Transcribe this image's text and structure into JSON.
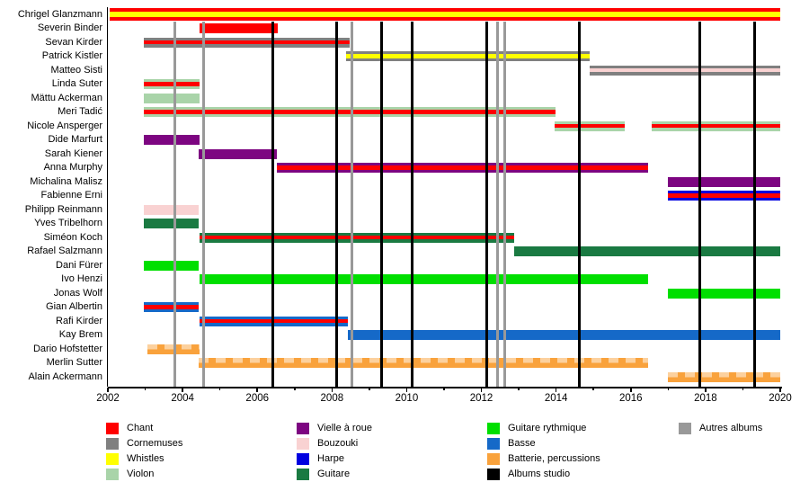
{
  "chart_data": {
    "type": "timeline",
    "axis": {
      "min": 2002,
      "max": 2020,
      "major_tick_labels": [
        "2002",
        "2004",
        "2006",
        "2008",
        "2010",
        "2012",
        "2014",
        "2016",
        "2018",
        "2020"
      ]
    },
    "colors": {
      "chant": "#FF0000",
      "cornemuses": "#808080",
      "whistles": "#FFFF00",
      "violon": "#A9D4A9",
      "vielle": "#7D0581",
      "bouzouki": "#F9D2D2",
      "harpe": "#0000E0",
      "guitare": "#1A7A42",
      "guitare_rythmique": "#00DF00",
      "basse": "#1569C8",
      "batterie": "#F9A23C",
      "albums_studio": "#000000",
      "autres_albums": "#999999"
    },
    "legend": {
      "columns": [
        [
          {
            "label": "Chant",
            "color": "chant"
          },
          {
            "label": "Cornemuses",
            "color": "cornemuses"
          },
          {
            "label": "Whistles",
            "color": "whistles"
          },
          {
            "label": "Violon",
            "color": "violon"
          }
        ],
        [
          {
            "label": "Vielle à roue",
            "color": "vielle"
          },
          {
            "label": "Bouzouki",
            "color": "bouzouki"
          },
          {
            "label": "Harpe",
            "color": "harpe"
          },
          {
            "label": "Guitare",
            "color": "guitare"
          }
        ],
        [
          {
            "label": "Guitare rythmique",
            "color": "guitare_rythmique"
          },
          {
            "label": "Basse",
            "color": "basse"
          },
          {
            "label": "Batterie, percussions",
            "color": "batterie"
          },
          {
            "label": "Albums studio",
            "color": "albums_studio"
          }
        ],
        [
          {
            "label": "Autres albums",
            "color": "autres_albums"
          }
        ]
      ]
    },
    "albums": {
      "studio": [
        2006.42,
        2008.12,
        2009.32,
        2010.15,
        2012.15,
        2014.63,
        2017.85,
        2019.32
      ],
      "autres": [
        2003.8,
        2004.57,
        2008.53,
        2012.42,
        2012.62
      ]
    },
    "members": [
      {
        "name": "Chrigel Glanzmann",
        "segments": [
          {
            "start": 2002.05,
            "end": 2020,
            "stripes": [
              "chant",
              "whistles",
              "chant"
            ],
            "tall": true
          }
        ]
      },
      {
        "name": "Severin Binder",
        "segments": [
          {
            "start": 2004.45,
            "end": 2006.55,
            "stripes": [
              "chant"
            ]
          }
        ]
      },
      {
        "name": "Sevan Kirder",
        "segments": [
          {
            "start": 2002.97,
            "end": 2008.47,
            "stripes": [
              "cornemuses",
              "chant",
              "cornemuses"
            ]
          }
        ]
      },
      {
        "name": "Patrick Kistler",
        "segments": [
          {
            "start": 2008.38,
            "end": 2014.9,
            "stripes": [
              "cornemuses",
              "whistles",
              "cornemuses"
            ]
          }
        ]
      },
      {
        "name": "Matteo Sisti",
        "segments": [
          {
            "start": 2014.9,
            "end": 2020,
            "stripes": [
              "cornemuses",
              "bouzouki",
              "cornemuses"
            ]
          }
        ]
      },
      {
        "name": "Linda Suter",
        "segments": [
          {
            "start": 2002.97,
            "end": 2004.45,
            "stripes": [
              "violon",
              "chant",
              "violon"
            ]
          }
        ]
      },
      {
        "name": "Mättu Ackerman",
        "segments": [
          {
            "start": 2002.97,
            "end": 2004.45,
            "stripes": [
              "violon"
            ]
          }
        ]
      },
      {
        "name": "Meri Tadić",
        "segments": [
          {
            "start": 2002.97,
            "end": 2013.98,
            "stripes": [
              "violon",
              "chant",
              "violon"
            ]
          }
        ]
      },
      {
        "name": "Nicole Ansperger",
        "segments": [
          {
            "start": 2013.95,
            "end": 2015.84,
            "stripes": [
              "violon",
              "chant",
              "violon"
            ]
          },
          {
            "start": 2016.56,
            "end": 2020,
            "stripes": [
              "violon",
              "chant",
              "violon"
            ]
          }
        ]
      },
      {
        "name": "Dide Marfurt",
        "segments": [
          {
            "start": 2002.97,
            "end": 2004.45,
            "stripes": [
              "vielle"
            ]
          }
        ]
      },
      {
        "name": "Sarah Kiener",
        "segments": [
          {
            "start": 2004.42,
            "end": 2006.52,
            "stripes": [
              "vielle"
            ]
          }
        ]
      },
      {
        "name": "Anna Murphy",
        "segments": [
          {
            "start": 2006.52,
            "end": 2016.46,
            "stripes": [
              "vielle",
              "chant",
              "vielle"
            ]
          }
        ]
      },
      {
        "name": "Michalina Malisz",
        "segments": [
          {
            "start": 2017.0,
            "end": 2020,
            "stripes": [
              "vielle"
            ]
          }
        ]
      },
      {
        "name": "Fabienne Erni",
        "segments": [
          {
            "start": 2017.0,
            "end": 2020,
            "stripes": [
              "harpe",
              "chant",
              "harpe"
            ]
          }
        ]
      },
      {
        "name": "Philipp Reinmann",
        "segments": [
          {
            "start": 2002.97,
            "end": 2004.42,
            "stripes": [
              "bouzouki"
            ]
          }
        ]
      },
      {
        "name": "Yves Tribelhorn",
        "segments": [
          {
            "start": 2002.97,
            "end": 2004.42,
            "stripes": [
              "guitare"
            ]
          }
        ]
      },
      {
        "name": "Siméon Koch",
        "segments": [
          {
            "start": 2004.45,
            "end": 2012.88,
            "stripes": [
              "guitare",
              "chant",
              "guitare"
            ]
          }
        ]
      },
      {
        "name": "Rafael Salzmann",
        "segments": [
          {
            "start": 2012.88,
            "end": 2020,
            "stripes": [
              "guitare"
            ]
          }
        ]
      },
      {
        "name": "Dani Fürer",
        "segments": [
          {
            "start": 2002.97,
            "end": 2004.42,
            "stripes": [
              "guitare_rythmique"
            ]
          }
        ]
      },
      {
        "name": "Ivo Henzi",
        "segments": [
          {
            "start": 2004.45,
            "end": 2016.46,
            "stripes": [
              "guitare_rythmique"
            ]
          }
        ]
      },
      {
        "name": "Jonas Wolf",
        "segments": [
          {
            "start": 2017.0,
            "end": 2020,
            "stripes": [
              "guitare_rythmique"
            ]
          }
        ]
      },
      {
        "name": "Gian Albertin",
        "segments": [
          {
            "start": 2002.97,
            "end": 2004.42,
            "stripes": [
              "basse",
              "chant",
              "basse"
            ]
          }
        ]
      },
      {
        "name": "Rafi Kirder",
        "segments": [
          {
            "start": 2004.45,
            "end": 2008.42,
            "stripes": [
              "basse",
              "chant",
              "basse"
            ]
          }
        ]
      },
      {
        "name": "Kay Brem",
        "segments": [
          {
            "start": 2008.42,
            "end": 2020,
            "stripes": [
              "basse"
            ]
          }
        ]
      },
      {
        "name": "Dario Hofstetter",
        "segments": [
          {
            "start": 2003.05,
            "end": 2004.45,
            "stripes": [
              "batterie"
            ],
            "pattern": true
          }
        ]
      },
      {
        "name": "Merlin Sutter",
        "segments": [
          {
            "start": 2004.42,
            "end": 2016.46,
            "stripes": [
              "batterie"
            ],
            "pattern": true
          }
        ]
      },
      {
        "name": "Alain Ackermann",
        "segments": [
          {
            "start": 2017.0,
            "end": 2020,
            "stripes": [
              "batterie"
            ],
            "pattern": true
          }
        ]
      }
    ]
  }
}
